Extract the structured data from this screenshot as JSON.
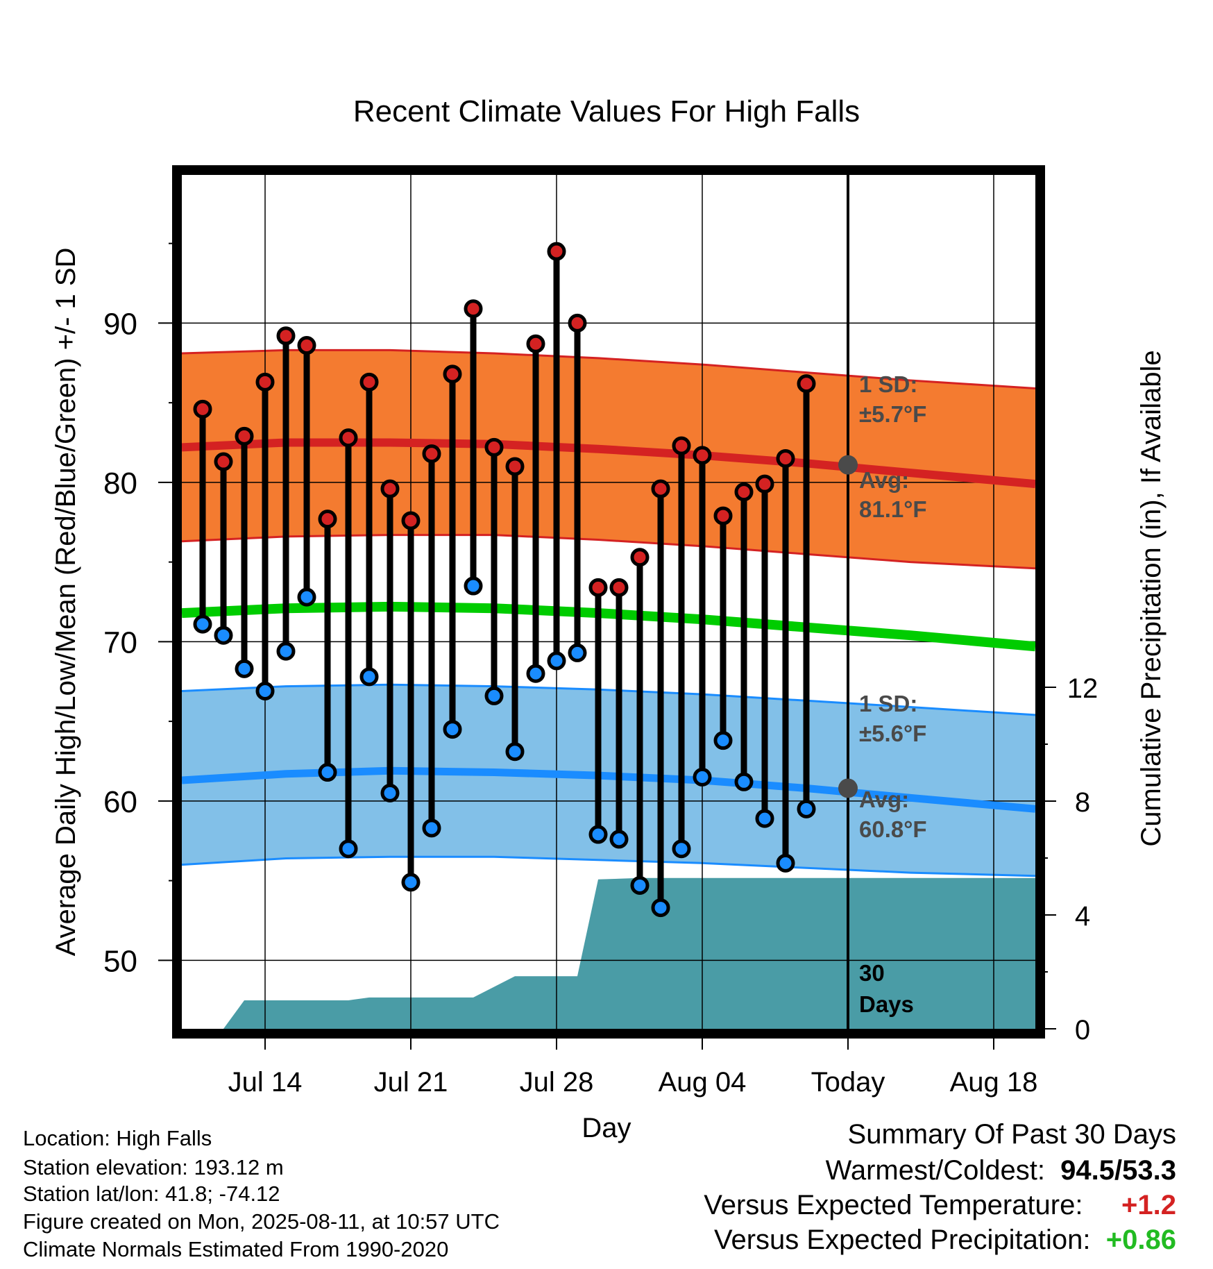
{
  "chart_data": {
    "type": "range-bar",
    "title": "Recent Climate Values For High Falls",
    "xlabel": "Day",
    "ylabel_left": "Average Daily High/Low/Mean (Red/Blue/Green) +/- 1 SD",
    "ylabel_right": "Cumulative Precipitation (in), If Available",
    "x_ticks": [
      {
        "x": "2025-07-14",
        "label": "Jul 14"
      },
      {
        "x": "2025-07-21",
        "label": "Jul 21"
      },
      {
        "x": "2025-07-28",
        "label": "Jul 28"
      },
      {
        "x": "2025-08-04",
        "label": "Aug 04"
      },
      {
        "x": "2025-08-11",
        "label": "Today"
      },
      {
        "x": "2025-08-18",
        "label": "Aug 18"
      }
    ],
    "x_range": [
      "2025-07-10",
      "2025-08-20"
    ],
    "y_left_range": [
      45.7,
      99.3
    ],
    "y_left_ticks": [
      50,
      60,
      70,
      80,
      90
    ],
    "y_right_range": [
      0,
      30
    ],
    "y_right_ticks": [
      0,
      4,
      8,
      12
    ],
    "grid": true,
    "today": "2025-08-11",
    "days": [
      {
        "date": "2025-07-11",
        "high": 84.6,
        "low": 71.1
      },
      {
        "date": "2025-07-12",
        "high": 81.3,
        "low": 70.4
      },
      {
        "date": "2025-07-13",
        "high": 82.9,
        "low": 68.3
      },
      {
        "date": "2025-07-14",
        "high": 86.3,
        "low": 66.9
      },
      {
        "date": "2025-07-15",
        "high": 89.2,
        "low": 69.4
      },
      {
        "date": "2025-07-16",
        "high": 88.6,
        "low": 72.8
      },
      {
        "date": "2025-07-17",
        "high": 77.7,
        "low": 61.8
      },
      {
        "date": "2025-07-18",
        "high": 82.8,
        "low": 57.0
      },
      {
        "date": "2025-07-19",
        "high": 86.3,
        "low": 67.8
      },
      {
        "date": "2025-07-20",
        "high": 79.6,
        "low": 60.5
      },
      {
        "date": "2025-07-21",
        "high": 77.6,
        "low": 54.9
      },
      {
        "date": "2025-07-22",
        "high": 81.8,
        "low": 58.3
      },
      {
        "date": "2025-07-23",
        "high": 86.8,
        "low": 64.5
      },
      {
        "date": "2025-07-24",
        "high": 90.9,
        "low": 73.5
      },
      {
        "date": "2025-07-25",
        "high": 82.2,
        "low": 66.6
      },
      {
        "date": "2025-07-26",
        "high": 81.0,
        "low": 63.1
      },
      {
        "date": "2025-07-27",
        "high": 88.7,
        "low": 68.0
      },
      {
        "date": "2025-07-28",
        "high": 94.5,
        "low": 68.8
      },
      {
        "date": "2025-07-29",
        "high": 90.0,
        "low": 69.3
      },
      {
        "date": "2025-07-30",
        "high": 73.4,
        "low": 57.9
      },
      {
        "date": "2025-07-31",
        "high": 73.4,
        "low": 57.6
      },
      {
        "date": "2025-08-01",
        "high": 75.3,
        "low": 54.7
      },
      {
        "date": "2025-08-02",
        "high": 79.6,
        "low": 53.3
      },
      {
        "date": "2025-08-03",
        "high": 82.3,
        "low": 57.0
      },
      {
        "date": "2025-08-04",
        "high": 81.7,
        "low": 61.5
      },
      {
        "date": "2025-08-05",
        "high": 77.9,
        "low": 63.8
      },
      {
        "date": "2025-08-06",
        "high": 79.4,
        "low": 61.2
      },
      {
        "date": "2025-08-07",
        "high": 79.9,
        "low": 58.9
      },
      {
        "date": "2025-08-08",
        "high": 81.5,
        "low": 56.1
      },
      {
        "date": "2025-08-09",
        "high": 86.2,
        "low": 59.5
      }
    ],
    "normals": {
      "x": [
        "2025-07-10",
        "2025-07-15",
        "2025-07-20",
        "2025-07-25",
        "2025-07-30",
        "2025-08-04",
        "2025-08-09",
        "2025-08-14",
        "2025-08-20"
      ],
      "high_avg": [
        82.2,
        82.5,
        82.5,
        82.4,
        82.1,
        81.7,
        81.2,
        80.6,
        79.9
      ],
      "high_upper": [
        88.1,
        88.3,
        88.3,
        88.1,
        87.8,
        87.4,
        86.9,
        86.4,
        85.9
      ],
      "high_lower": [
        76.3,
        76.6,
        76.7,
        76.7,
        76.4,
        76.0,
        75.5,
        75.0,
        74.6
      ],
      "mean_avg": [
        71.8,
        72.1,
        72.2,
        72.1,
        71.8,
        71.4,
        70.9,
        70.4,
        69.7
      ],
      "low_avg": [
        61.3,
        61.7,
        61.9,
        61.8,
        61.6,
        61.3,
        60.8,
        60.2,
        59.5
      ],
      "low_upper": [
        66.9,
        67.2,
        67.3,
        67.2,
        67.0,
        66.7,
        66.3,
        65.9,
        65.4
      ],
      "low_lower": [
        56.0,
        56.4,
        56.5,
        56.5,
        56.3,
        56.1,
        55.8,
        55.5,
        55.3
      ]
    },
    "precip_cumulative": [
      {
        "date": "2025-07-12",
        "value": 0.0
      },
      {
        "date": "2025-07-13",
        "value": 1.0
      },
      {
        "date": "2025-07-18",
        "value": 1.0
      },
      {
        "date": "2025-07-19",
        "value": 1.1
      },
      {
        "date": "2025-07-24",
        "value": 1.1
      },
      {
        "date": "2025-07-26",
        "value": 1.85
      },
      {
        "date": "2025-07-29",
        "value": 1.85
      },
      {
        "date": "2025-07-30",
        "value": 5.25
      },
      {
        "date": "2025-08-01",
        "value": 5.3
      },
      {
        "date": "2025-08-20",
        "value": 5.3
      }
    ],
    "annotations": {
      "high_sd": "1 SD:",
      "high_sd_value": "±5.7°F",
      "high_avg_label": "Avg:",
      "high_avg_value": "81.1°F",
      "high_avg_today": 81.1,
      "low_sd": "1 SD:",
      "low_sd_value": "±5.6°F",
      "low_avg_label": "Avg:",
      "low_avg_value": "60.8°F",
      "low_avg_today": 60.8,
      "period_num": "30",
      "period_unit": "Days"
    },
    "colors": {
      "high_band": "#f47b30",
      "high_line": "#d42222",
      "mean_line": "#00cc00",
      "low_band": "#82c0e8",
      "low_line": "#1a8cff",
      "precip": "#4a9ca6",
      "high_dot": "#d42222",
      "low_dot": "#1a8cff",
      "avg_dot": "#4a4a4a",
      "annotation": "#4a4a4a"
    }
  },
  "footer": {
    "location": "Location: High Falls",
    "elevation": "Station elevation: 193.12 m",
    "latlon": "Station lat/lon: 41.8; -74.12",
    "created": "Figure created on Mon, 2025-08-11, at 10:57 UTC",
    "normals": "Climate Normals Estimated From 1990-2020"
  },
  "summary": {
    "heading": "Summary Of Past 30 Days",
    "warmest_label": "Warmest/Coldest:",
    "warmest_value": "94.5/53.3",
    "temp_label": "Versus Expected Temperature:",
    "temp_value": "+1.2",
    "temp_color": "#d42222",
    "precip_label": "Versus Expected Precipitation:",
    "precip_value": "+0.86",
    "precip_color": "#22bb22"
  }
}
